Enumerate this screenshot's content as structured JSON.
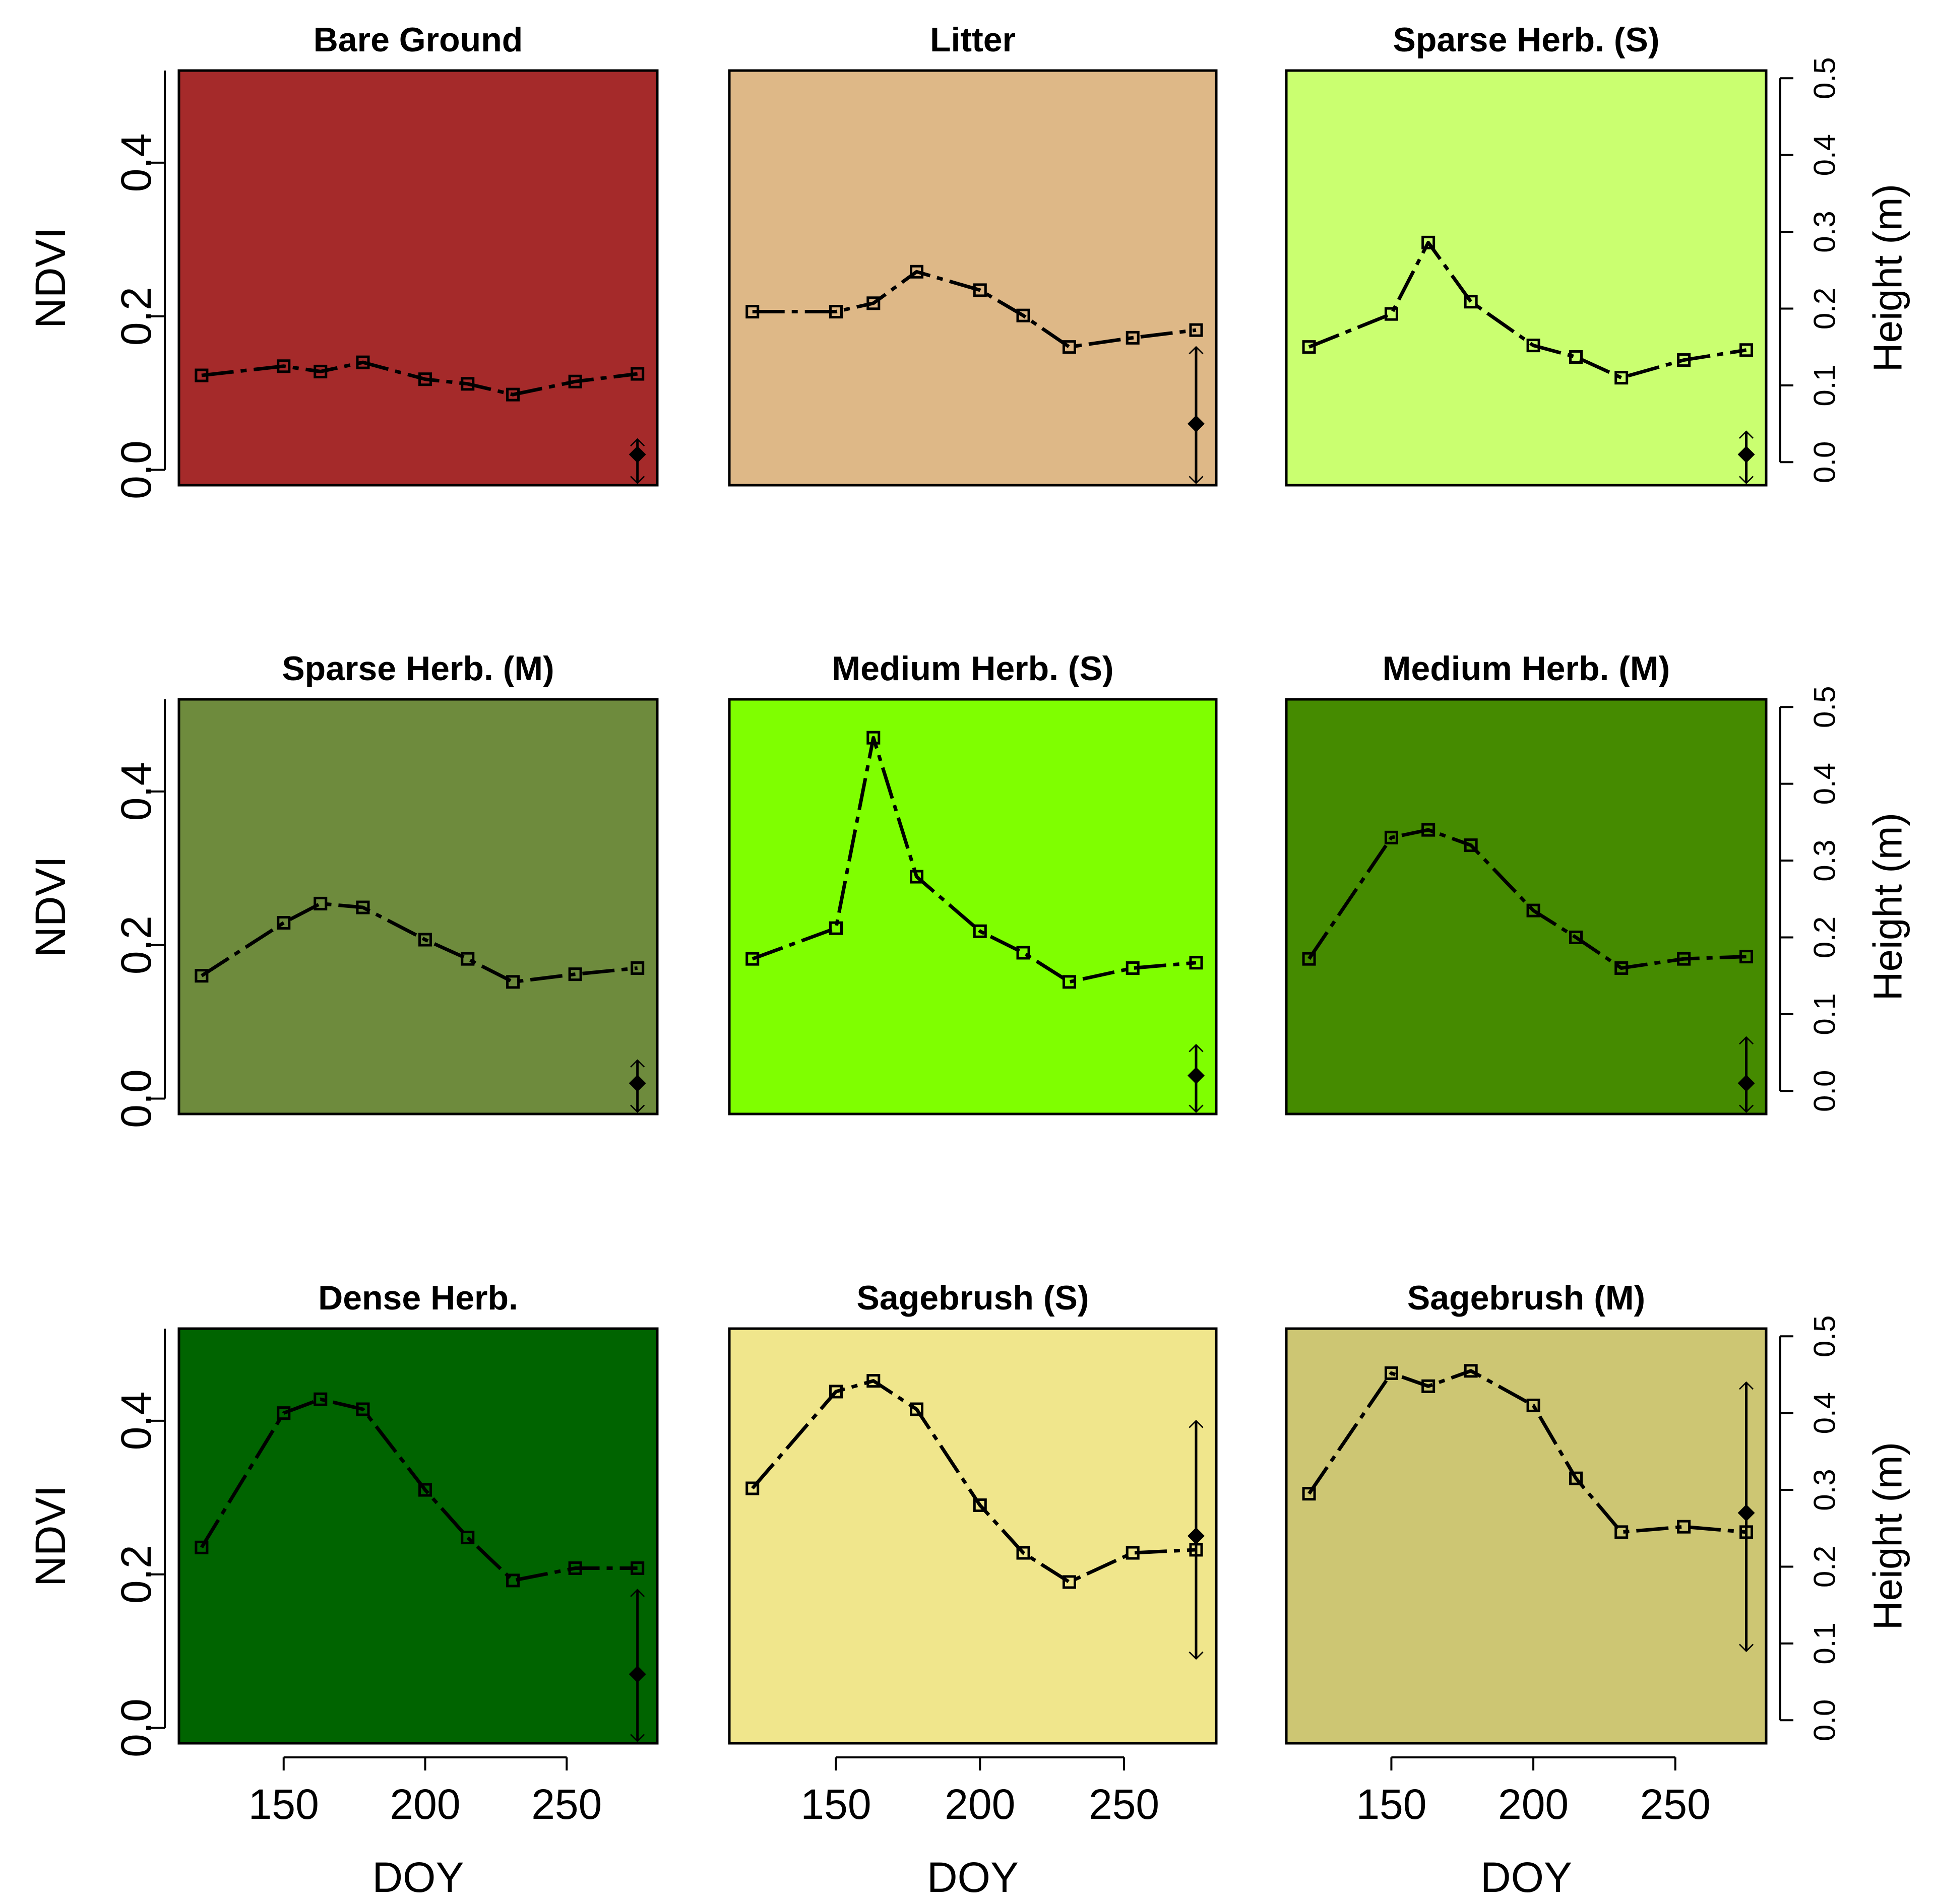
{
  "chart_data": {
    "type": "line",
    "layout": "3x3 small multiples",
    "xlabel": "DOY",
    "ylabel": "NDVI",
    "ylabel_right": "Height (m)",
    "xlim": [
      113,
      282
    ],
    "ylim": [
      -0.02,
      0.52
    ],
    "ylim_right": [
      -0.03,
      0.51
    ],
    "x_ticks": [
      150,
      200,
      250
    ],
    "x_tick_labels": [
      "150",
      "200",
      "250"
    ],
    "y_ticks": [
      0.0,
      0.2,
      0.4
    ],
    "y_tick_labels": [
      "0.0",
      "0.2",
      "0.4"
    ],
    "y_ticks_right": [
      0.0,
      0.1,
      0.2,
      0.3,
      0.4,
      0.5
    ],
    "y_tick_labels_right": [
      "0.0",
      "0.1",
      "0.2",
      "0.3",
      "0.4",
      "0.5"
    ],
    "x": [
      121,
      150,
      163,
      178,
      200,
      215,
      231,
      253,
      275
    ],
    "panels": [
      {
        "title": "Bare Ground",
        "color": "#a52a2a",
        "ndvi": [
          0.123,
          0.135,
          0.128,
          0.14,
          0.118,
          0.112,
          0.098,
          0.115,
          0.125
        ],
        "height": {
          "doy": 275,
          "mean": 0.01,
          "low": -0.03,
          "high": 0.03
        }
      },
      {
        "title": "Litter",
        "color": "#deb887",
        "ndvi": [
          0.206,
          0.206,
          0.217,
          0.258,
          0.234,
          0.201,
          0.16,
          0.172,
          0.182
        ],
        "height": {
          "doy": 275,
          "mean": 0.05,
          "low": -0.03,
          "high": 0.15
        }
      },
      {
        "title": "Sparse Herb. (S)",
        "color": "#caff70",
        "ndvi": [
          0.16,
          0.203,
          0.296,
          0.219,
          0.162,
          0.147,
          0.12,
          0.143,
          0.156
        ],
        "height": {
          "doy": 275,
          "mean": 0.01,
          "low": -0.03,
          "high": 0.04
        }
      },
      {
        "title": "Sparse Herb. (M)",
        "color": "#6e8b3d",
        "ndvi": [
          0.16,
          0.229,
          0.254,
          0.249,
          0.207,
          0.182,
          0.152,
          0.162,
          0.17
        ],
        "height": {
          "doy": 275,
          "mean": 0.01,
          "low": -0.03,
          "high": 0.04
        }
      },
      {
        "title": "Medium Herb. (S)",
        "color": "#7fff00",
        "ndvi": [
          0.182,
          0.222,
          0.47,
          0.289,
          0.218,
          0.19,
          0.152,
          0.17,
          0.177
        ],
        "height": {
          "doy": 275,
          "mean": 0.02,
          "low": -0.03,
          "high": 0.06
        }
      },
      {
        "title": "Medium Herb. (M)",
        "color": "#458b00",
        "ndvi": [
          0.182,
          0.34,
          0.35,
          0.33,
          0.245,
          0.21,
          0.17,
          0.182,
          0.185
        ],
        "height": {
          "doy": 275,
          "mean": 0.01,
          "low": -0.03,
          "high": 0.07
        }
      },
      {
        "title": "Dense Herb.",
        "color": "#006400",
        "ndvi": [
          0.235,
          0.41,
          0.428,
          0.415,
          0.31,
          0.248,
          0.192,
          0.208,
          0.208
        ],
        "height": {
          "doy": 275,
          "mean": 0.06,
          "low": -0.03,
          "high": 0.17
        }
      },
      {
        "title": "Sagebrush (S)",
        "color": "#f0e68c",
        "ndvi": [
          0.312,
          0.438,
          0.452,
          0.415,
          0.29,
          0.228,
          0.19,
          0.228,
          0.232
        ],
        "height": {
          "doy": 275,
          "mean": 0.24,
          "low": 0.08,
          "high": 0.39
        }
      },
      {
        "title": "Sagebrush (M)",
        "color": "#cdc673",
        "ndvi": [
          0.305,
          0.462,
          0.445,
          0.465,
          0.42,
          0.325,
          0.255,
          0.262,
          0.255
        ],
        "height": {
          "doy": 275,
          "mean": 0.27,
          "low": 0.09,
          "high": 0.44
        }
      }
    ]
  }
}
